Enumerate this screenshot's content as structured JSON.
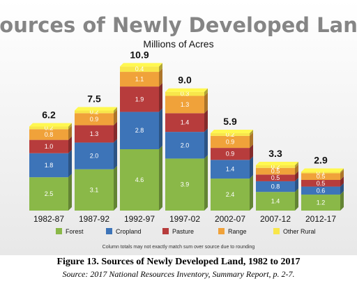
{
  "chart_data": {
    "type": "stacked-bar",
    "title": "Sources of Newly Developed Land",
    "subtitle": "Millions of Acres",
    "categories": [
      "1982-87",
      "1987-92",
      "1992-97",
      "1997-02",
      "2002-07",
      "2007-12",
      "2012-17"
    ],
    "totals": [
      "6.2",
      "7.5",
      "10.9",
      "9.0",
      "5.9",
      "3.3",
      "2.9"
    ],
    "series": [
      {
        "name": "Forest",
        "color": "#8ab848",
        "values": [
          2.5,
          3.1,
          4.6,
          3.9,
          2.4,
          1.4,
          1.2
        ]
      },
      {
        "name": "Cropland",
        "color": "#3d74b8",
        "values": [
          1.8,
          2.0,
          2.8,
          2.0,
          1.4,
          0.8,
          0.6
        ]
      },
      {
        "name": "Pasture",
        "color": "#b73c3c",
        "values": [
          1.0,
          1.3,
          1.9,
          1.4,
          0.9,
          0.5,
          0.5
        ]
      },
      {
        "name": "Range",
        "color": "#f0a23a",
        "values": [
          0.8,
          0.9,
          1.1,
          1.3,
          0.9,
          0.5,
          0.5
        ]
      },
      {
        "name": "Other Rural",
        "color": "#f8e64a",
        "values": [
          0.2,
          0.2,
          0.4,
          0.3,
          0.2,
          0.2,
          0.1
        ]
      }
    ],
    "ylim": [
      0,
      11.5
    ],
    "grid": false,
    "legend": "bottom",
    "note": "Column totals may not exactly match sum over source due to rounding"
  },
  "caption": {
    "title": "Figure 13. Sources of Newly Developed Land, 1982 to 2017",
    "source": "Source: 2017 National Resources Inventory, Summary Report, p. 2-7."
  }
}
